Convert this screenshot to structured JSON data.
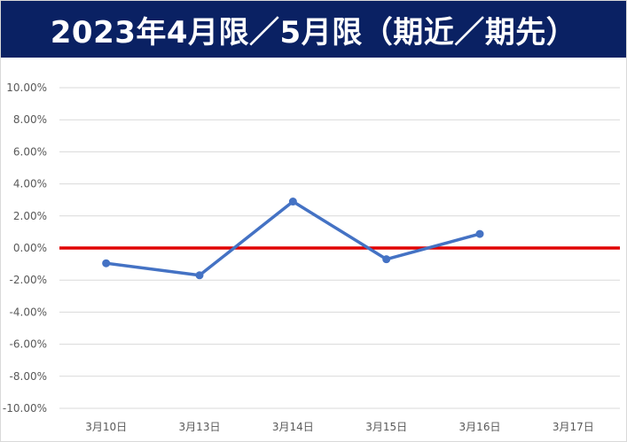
{
  "chart_data": {
    "type": "line",
    "title": "2023年4月限／5月限（期近／期先）",
    "categories": [
      "3月10日",
      "3月13日",
      "3月14日",
      "3月15日",
      "3月16日",
      "3月17日"
    ],
    "series": [
      {
        "values": [
          -0.0095,
          -0.017,
          0.029,
          -0.007,
          0.0088,
          null
        ]
      }
    ],
    "y_ticks": [
      "10.00%",
      "8.00%",
      "6.00%",
      "4.00%",
      "2.00%",
      "0.00%",
      "-2.00%",
      "-4.00%",
      "-6.00%",
      "-8.00%",
      "-10.00%"
    ],
    "ylim": [
      -0.1,
      0.1
    ],
    "reference_line": 0,
    "grid": true,
    "legend": "none",
    "colors": {
      "series": "#4472c4",
      "reference": "#e00000",
      "grid": "#d9d9d9",
      "banner": "#0a2163"
    }
  }
}
